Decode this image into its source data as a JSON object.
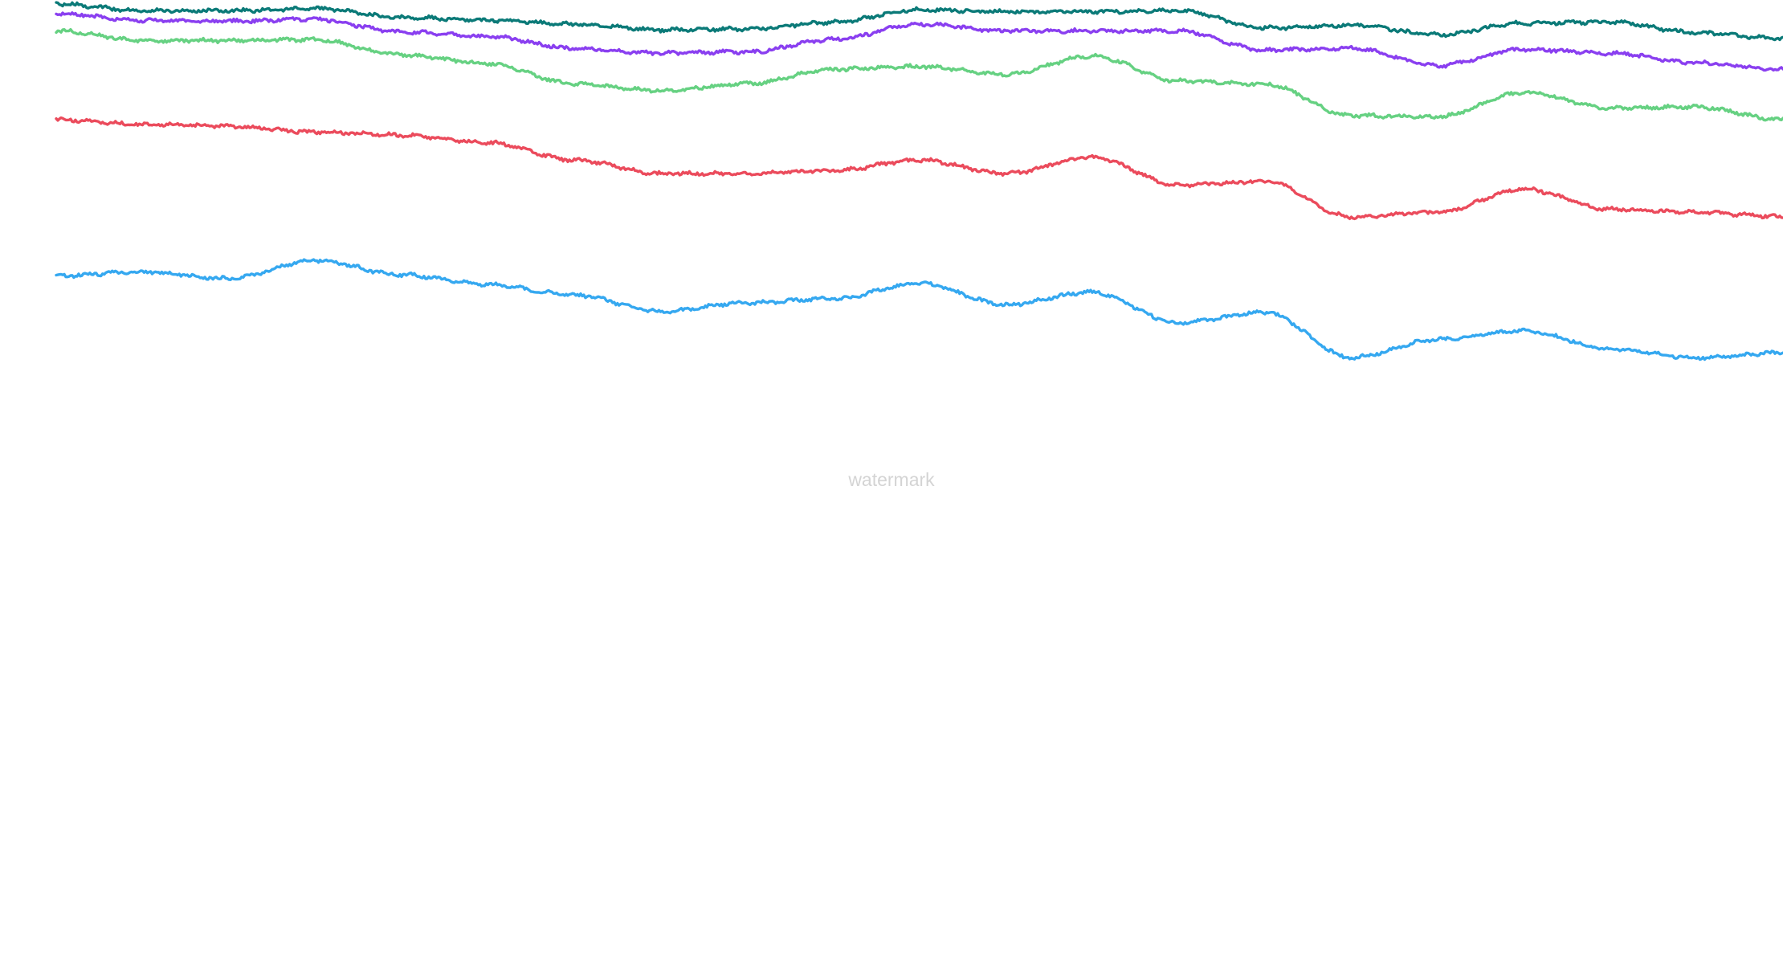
{
  "watermark": "watermark",
  "chart_data": {
    "type": "line",
    "x": [
      0,
      5,
      10,
      15,
      20,
      25,
      30,
      35,
      40,
      45,
      50,
      55,
      60,
      65,
      70,
      75,
      80,
      85,
      90,
      95,
      100
    ],
    "xlim": [
      0,
      100
    ],
    "ylim": [
      0,
      100
    ],
    "grid": false,
    "legend": "none",
    "series": [
      {
        "color": "#0b7a78",
        "values": [
          99.6,
          98.9,
          98.9,
          99.1,
          98.2,
          97.9,
          97.5,
          96.9,
          97.0,
          97.7,
          99.0,
          98.8,
          98.8,
          98.9,
          97.1,
          97.4,
          96.4,
          97.6,
          97.7,
          96.6,
          96.0
        ]
      },
      {
        "color": "#8a3ff0",
        "values": [
          98.6,
          97.9,
          97.8,
          98.0,
          96.7,
          96.2,
          95.0,
          94.5,
          94.6,
          95.9,
          97.5,
          96.8,
          96.8,
          96.8,
          94.8,
          95.0,
          93.2,
          94.9,
          94.5,
          93.5,
          92.8
        ]
      },
      {
        "color": "#66d182",
        "values": [
          96.8,
          95.8,
          95.8,
          95.9,
          94.3,
          93.4,
          91.3,
          90.6,
          91.3,
          92.8,
          93.1,
          92.3,
          94.2,
          91.6,
          91.3,
          88.0,
          87.9,
          90.4,
          88.8,
          88.9,
          87.6
        ]
      },
      {
        "color": "#eb4b5c",
        "values": [
          87.6,
          87.1,
          86.9,
          86.3,
          86.0,
          85.2,
          83.4,
          82.0,
          82.0,
          82.3,
          83.4,
          82.0,
          83.7,
          80.8,
          81.2,
          77.5,
          78.0,
          80.4,
          78.3,
          78.0,
          77.5
        ]
      },
      {
        "color": "#35a8f0",
        "values": [
          71.4,
          71.8,
          71.1,
          73.0,
          71.5,
          70.5,
          69.4,
          67.7,
          68.6,
          69.0,
          70.6,
          68.4,
          69.7,
          66.5,
          67.6,
          62.9,
          64.8,
          65.7,
          63.8,
          62.9,
          63.4
        ]
      }
    ]
  }
}
